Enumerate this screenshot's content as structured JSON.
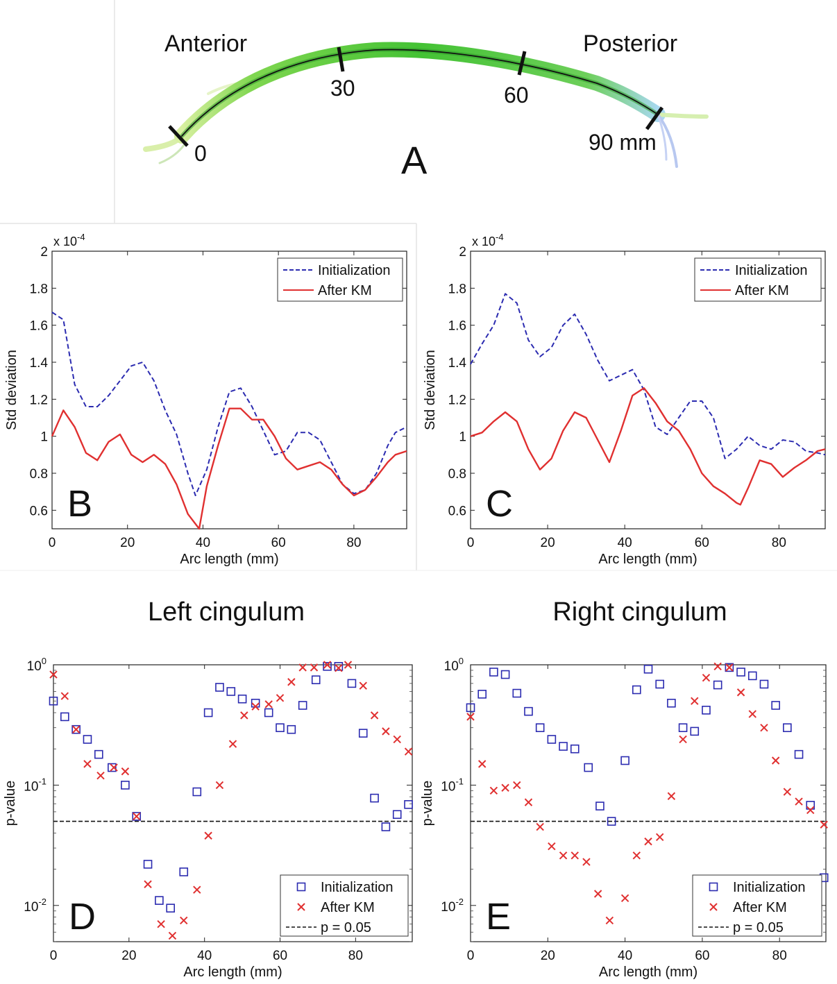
{
  "panel_a": {
    "anterior": "Anterior",
    "posterior": "Posterior",
    "letter": "A",
    "markers": [
      "0",
      "30",
      "60",
      "90 mm"
    ]
  },
  "titles": {
    "left": "Left cingulum",
    "right": "Right cingulum"
  },
  "chart_data": [
    {
      "type": "line",
      "panel": "B",
      "xlabel": "Arc length (mm)",
      "ylabel": "Std deviation",
      "exponent_label": "x 10",
      "exponent_power": "-4",
      "xlim": [
        0,
        94
      ],
      "ylim": [
        0.5,
        2.0
      ],
      "xticks": [
        0,
        20,
        40,
        60,
        80
      ],
      "yticks": [
        0.6,
        0.8,
        1.0,
        1.2,
        1.4,
        1.6,
        1.8,
        2.0
      ],
      "ytick_labels": [
        "0.6",
        "0.8",
        "1",
        "1.2",
        "1.4",
        "1.6",
        "1.8",
        "2"
      ],
      "legend_position": "top-right",
      "series": [
        {
          "name": "Initialization",
          "style": "dashed",
          "color": "#2b2bb0",
          "x": [
            0,
            3,
            6,
            9,
            12,
            15,
            18,
            21,
            24,
            27,
            30,
            33,
            36,
            38,
            41,
            44,
            47,
            50,
            53,
            56,
            59,
            62,
            65,
            68,
            71,
            74,
            77,
            80,
            83,
            86,
            89,
            91,
            94
          ],
          "y": [
            1.67,
            1.63,
            1.28,
            1.16,
            1.16,
            1.22,
            1.3,
            1.38,
            1.4,
            1.3,
            1.14,
            1.01,
            0.8,
            0.68,
            0.82,
            1.05,
            1.24,
            1.26,
            1.16,
            1.03,
            0.9,
            0.92,
            1.02,
            1.02,
            0.98,
            0.86,
            0.74,
            0.69,
            0.71,
            0.8,
            0.95,
            1.02,
            1.05
          ]
        },
        {
          "name": "After KM",
          "style": "solid",
          "color": "#e03030",
          "x": [
            0,
            3,
            6,
            9,
            12,
            15,
            18,
            21,
            24,
            27,
            30,
            33,
            36,
            39,
            41,
            44,
            47,
            50,
            53,
            56,
            59,
            62,
            65,
            68,
            71,
            74,
            77,
            80,
            83,
            86,
            89,
            91,
            94
          ],
          "y": [
            1.0,
            1.14,
            1.05,
            0.91,
            0.87,
            0.97,
            1.01,
            0.9,
            0.86,
            0.9,
            0.85,
            0.74,
            0.58,
            0.5,
            0.73,
            0.95,
            1.15,
            1.15,
            1.09,
            1.09,
            1.0,
            0.88,
            0.82,
            0.84,
            0.86,
            0.82,
            0.74,
            0.68,
            0.71,
            0.78,
            0.86,
            0.9,
            0.92
          ]
        }
      ]
    },
    {
      "type": "line",
      "panel": "C",
      "xlabel": "Arc length (mm)",
      "ylabel": "Std deviation",
      "exponent_label": "x 10",
      "exponent_power": "-4",
      "xlim": [
        0,
        92
      ],
      "ylim": [
        0.5,
        2.0
      ],
      "xticks": [
        0,
        20,
        40,
        60,
        80
      ],
      "yticks": [
        0.6,
        0.8,
        1.0,
        1.2,
        1.4,
        1.6,
        1.8,
        2.0
      ],
      "ytick_labels": [
        "0.6",
        "0.8",
        "1",
        "1.2",
        "1.4",
        "1.6",
        "1.8",
        "2"
      ],
      "legend_position": "top-right",
      "series": [
        {
          "name": "Initialization",
          "style": "dashed",
          "color": "#2b2bb0",
          "x": [
            0,
            3,
            6,
            9,
            12,
            15,
            18,
            21,
            24,
            27,
            30,
            33,
            36,
            39,
            42,
            45,
            48,
            51,
            54,
            57,
            60,
            63,
            66,
            69,
            72,
            75,
            78,
            81,
            84,
            87,
            90,
            92
          ],
          "y": [
            1.39,
            1.5,
            1.6,
            1.77,
            1.72,
            1.52,
            1.43,
            1.48,
            1.6,
            1.66,
            1.55,
            1.41,
            1.3,
            1.33,
            1.36,
            1.25,
            1.05,
            1.01,
            1.1,
            1.19,
            1.19,
            1.1,
            0.88,
            0.93,
            1.0,
            0.95,
            0.93,
            0.98,
            0.97,
            0.92,
            0.91,
            0.9
          ]
        },
        {
          "name": "After KM",
          "style": "solid",
          "color": "#e03030",
          "x": [
            0,
            3,
            6,
            9,
            12,
            15,
            18,
            21,
            24,
            27,
            30,
            33,
            36,
            39,
            42,
            45,
            48,
            51,
            54,
            57,
            60,
            63,
            66,
            69,
            70,
            72,
            75,
            78,
            81,
            84,
            87,
            90,
            92
          ],
          "y": [
            1.0,
            1.02,
            1.08,
            1.13,
            1.08,
            0.93,
            0.82,
            0.88,
            1.03,
            1.13,
            1.1,
            0.98,
            0.86,
            1.03,
            1.22,
            1.26,
            1.18,
            1.08,
            1.03,
            0.93,
            0.8,
            0.73,
            0.69,
            0.64,
            0.63,
            0.72,
            0.87,
            0.85,
            0.78,
            0.83,
            0.87,
            0.92,
            0.93
          ]
        }
      ]
    },
    {
      "type": "scatter",
      "panel": "D",
      "xlabel": "Arc length (mm)",
      "ylabel": "p-value",
      "log_y": true,
      "xlim": [
        0,
        95
      ],
      "ylim": [
        0.005,
        1.0
      ],
      "xticks": [
        0,
        20,
        40,
        60,
        80
      ],
      "ytick_exponents": [
        0,
        -1,
        -2
      ],
      "ytick_base": "10",
      "threshold": 0.05,
      "legend_position": "bottom-right",
      "series": [
        {
          "name": "Initialization",
          "marker": "square",
          "color": "#2b2bb0",
          "x": [
            0,
            3,
            6,
            9,
            12,
            15.5,
            19,
            22,
            25,
            28,
            31,
            34.5,
            38,
            41,
            44,
            47,
            50,
            53.5,
            57,
            60,
            63,
            66,
            69.5,
            72.5,
            75.5,
            79,
            82,
            85,
            88,
            91,
            94
          ],
          "y": [
            0.5,
            0.37,
            0.29,
            0.24,
            0.18,
            0.14,
            0.1,
            0.055,
            0.022,
            0.011,
            0.0095,
            0.019,
            0.088,
            0.4,
            0.65,
            0.6,
            0.52,
            0.48,
            0.4,
            0.3,
            0.29,
            0.46,
            0.75,
            0.97,
            0.97,
            0.7,
            0.27,
            0.078,
            0.045,
            0.057,
            0.069
          ]
        },
        {
          "name": "After KM",
          "marker": "x",
          "color": "#e03030",
          "x": [
            0,
            3,
            6,
            9,
            12.5,
            16,
            19,
            22,
            25,
            28.5,
            31.5,
            34.5,
            38,
            41,
            44,
            47.5,
            50.5,
            53.5,
            57,
            60,
            63,
            66,
            69,
            72.5,
            75.5,
            78,
            82,
            85,
            88,
            91,
            94
          ],
          "y": [
            0.83,
            0.55,
            0.29,
            0.15,
            0.12,
            0.14,
            0.13,
            0.055,
            0.015,
            0.007,
            0.0056,
            0.0075,
            0.0135,
            0.038,
            0.1,
            0.22,
            0.38,
            0.45,
            0.47,
            0.53,
            0.72,
            0.95,
            0.95,
            1.0,
            0.94,
            1.0,
            0.67,
            0.38,
            0.28,
            0.24,
            0.19
          ]
        }
      ]
    },
    {
      "type": "scatter",
      "panel": "E",
      "xlabel": "Arc length (mm)",
      "ylabel": "p-value",
      "log_y": true,
      "xlim": [
        0,
        92
      ],
      "ylim": [
        0.005,
        1.0
      ],
      "xticks": [
        0,
        20,
        40,
        60,
        80
      ],
      "ytick_exponents": [
        0,
        -1,
        -2
      ],
      "ytick_base": "10",
      "threshold": 0.05,
      "legend_position": "bottom-right",
      "series": [
        {
          "name": "Initialization",
          "marker": "square",
          "color": "#2b2bb0",
          "x": [
            0,
            3,
            6,
            9,
            12,
            15,
            18,
            21,
            24,
            27,
            30.5,
            33.5,
            36.5,
            40,
            43,
            46,
            49,
            52,
            55,
            58,
            61,
            64,
            67,
            70,
            73,
            76,
            79,
            82,
            85,
            88,
            91.5
          ],
          "y": [
            0.44,
            0.57,
            0.87,
            0.83,
            0.58,
            0.41,
            0.3,
            0.24,
            0.21,
            0.2,
            0.14,
            0.067,
            0.05,
            0.16,
            0.62,
            0.92,
            0.69,
            0.48,
            0.3,
            0.28,
            0.42,
            0.68,
            0.95,
            0.87,
            0.81,
            0.69,
            0.46,
            0.3,
            0.18,
            0.068,
            0.017
          ]
        },
        {
          "name": "After KM",
          "marker": "x",
          "color": "#e03030",
          "x": [
            0,
            3,
            6,
            9,
            12,
            15,
            18,
            21,
            24,
            27,
            30,
            33,
            36,
            40,
            43,
            46,
            49,
            52,
            55,
            58,
            61,
            64,
            67,
            70,
            73,
            76,
            79,
            82,
            85,
            88,
            91.5
          ],
          "y": [
            0.37,
            0.15,
            0.09,
            0.095,
            0.1,
            0.072,
            0.045,
            0.031,
            0.026,
            0.026,
            0.023,
            0.0125,
            0.0075,
            0.0115,
            0.026,
            0.034,
            0.037,
            0.081,
            0.24,
            0.5,
            0.78,
            0.97,
            0.95,
            0.59,
            0.39,
            0.3,
            0.16,
            0.088,
            0.073,
            0.062,
            0.047
          ]
        }
      ]
    }
  ]
}
